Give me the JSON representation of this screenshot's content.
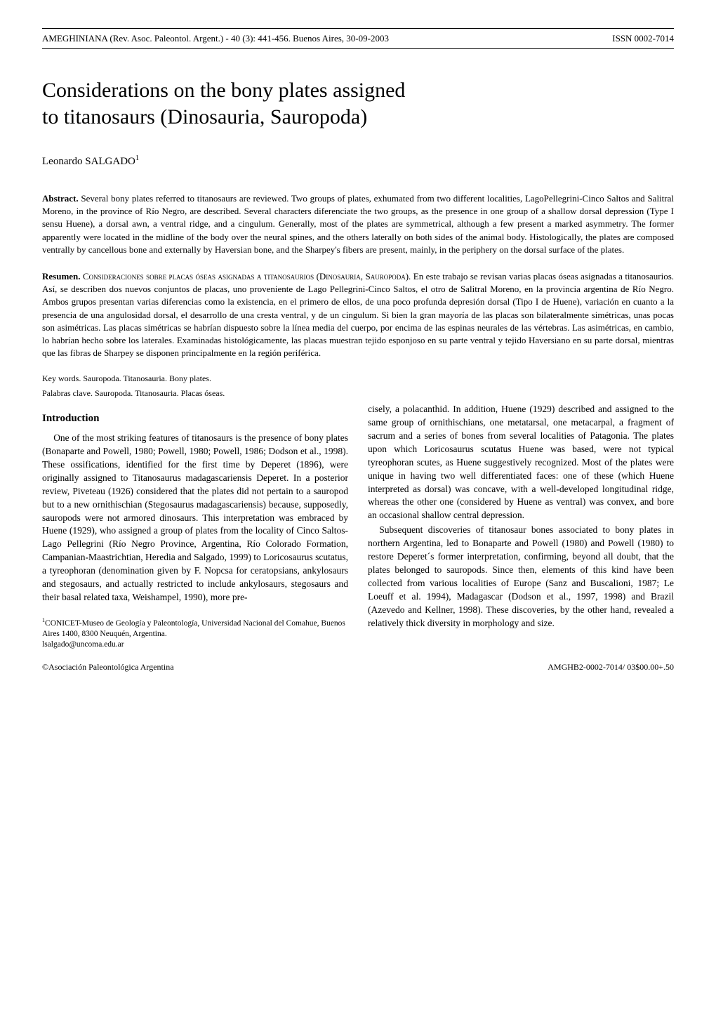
{
  "header": {
    "journal_line": "AMEGHINIANA (Rev. Asoc. Paleontol. Argent.) - 40 (3): 441-456. Buenos Aires, 30-09-2003",
    "issn": "ISSN 0002-7014"
  },
  "title_lines": [
    "Considerations on the bony plates assigned",
    "to titanosaurs (Dinosauria, Sauropoda)"
  ],
  "author": "Leonardo SALGADO",
  "author_sup": "1",
  "abstract_en": {
    "label": "Abstract.",
    "text": "Several bony plates referred to titanosaurs are reviewed. Two groups of plates, exhumated from two different localities, LagoPellegrini-Cinco Saltos and Salitral Moreno, in the province of Río Negro, are described. Several characters diferenciate the two groups, as the presence in one group of a shallow dorsal depression (Type I sensu Huene), a dorsal awn, a ventral ridge, and a cingulum. Generally, most of the plates are symmetrical, although a few present a marked asymmetry. The former apparently were located in the midline of the body over the neural spines, and the others laterally on both sides of the animal body. Histologically, the plates are composed ventrally by cancellous bone and externally by Haversian bone, and the Sharpey's fibers are present, mainly, in the periphery on the dorsal surface of the plates."
  },
  "abstract_es": {
    "label": "Resumen.",
    "title_smallcaps": "Consideraciones sobre placas óseas asignadas a titanosaurios (Dinosauria, Sauropoda).",
    "text": "En este trabajo se revisan varias placas óseas asignadas a titanosaurios. Así, se describen dos nuevos conjuntos de placas, uno proveniente de Lago Pellegrini-Cinco Saltos, el otro de Salitral Moreno, en la provincia argentina de Río Negro. Ambos grupos presentan varias diferencias como la existencia, en el primero de ellos, de una poco profunda depresión dorsal (Tipo I de Huene), variación en cuanto a la presencia de una angulosidad dorsal, el desarrollo de una cresta ventral, y de un cingulum. Si bien la gran mayoría de las placas son bilateralmente simétricas, unas pocas son asimétricas. Las placas simétricas se habrían dispuesto sobre la línea media del cuerpo, por encima de las espinas neurales de las vértebras. Las asimétricas, en cambio, lo habrían hecho sobre los laterales. Examinadas histológicamente, las placas muestran tejido esponjoso en su parte ventral y tejido Haversiano en su parte dorsal, mientras que las fibras de Sharpey se disponen principalmente en la región periférica."
  },
  "keywords_en": "Key words. Sauropoda. Titanosauria. Bony plates.",
  "keywords_es": "Palabras clave. Sauropoda. Titanosauria. Placas óseas.",
  "section_heading": "Introduction",
  "body": {
    "left": [
      "One of the most striking features of titanosaurs is the presence of bony plates (Bonaparte and Powell, 1980; Powell, 1980; Powell, 1986; Dodson et al., 1998). These ossifications, identified for the first time by Deperet (1896), were originally assigned to Titanosaurus madagascariensis Deperet. In a posterior review, Piveteau (1926) considered that the plates did not pertain to a sauropod but to a new ornithischian (Stegosaurus madagascariensis) because, supposedly, sauropods were not armored dinosaurs. This interpretation was embraced by Huene (1929), who assigned a group of plates from the locality of Cinco Saltos-Lago Pellegrini (Río Negro Province, Argentina, Río Colorado Formation, Campanian-Maastrichtian, Heredia and Salgado, 1999) to Loricosaurus scutatus, a tyreophoran (denomination given by F. Nopcsa for ceratopsians, ankylosaurs and stegosaurs, and actually restricted to include ankylosaurs, stegosaurs and their basal related taxa, Weishampel, 1990), more pre-"
    ],
    "right": [
      "cisely, a polacanthid. In addition, Huene (1929) described and assigned to the same group of ornithischians, one metatarsal, one metacarpal, a fragment of sacrum and a series of bones from several localities of Patagonia. The plates upon which Loricosaurus scutatus Huene was based, were not typical tyreophoran scutes, as Huene suggestively recognized. Most of the plates were unique in having two well differentiated faces: one of these (which Huene interpreted as dorsal) was concave, with a well-developed longitudinal ridge, whereas the other one (considered by Huene as ventral) was convex, and bore an occasional shallow central depression.",
      "Subsequent discoveries of titanosaur bones associated to bony plates in northern Argentina, led to Bonaparte and Powell (1980) and Powell (1980) to restore Deperet´s former interpretation, confirming, beyond all doubt, that the plates belonged to sauropods. Since then, elements of this kind have been collected from various localities of Europe (Sanz and Buscalioni, 1987; Le Loeuff et al. 1994), Madagascar (Dodson et al., 1997, 1998) and Brazil (Azevedo and Kellner, 1998). These discoveries, by the other hand, revealed a relatively thick diversity in morphology and size."
    ]
  },
  "footnote": {
    "sup": "1",
    "text": "CONICET-Museo de Geología y Paleontología, Universidad Nacional del Comahue, Buenos Aires 1400, 8300 Neuquén, Argentina.",
    "email": "lsalgado@uncoma.edu.ar"
  },
  "footer": {
    "left": "©Asociación Paleontológica Argentina",
    "right": "AMGHB2-0002-7014/ 03$00.00+.50"
  },
  "styles": {
    "page_bg": "#ffffff",
    "text_color": "#000000",
    "rule_color": "#000000",
    "title_fontsize_pt": 22,
    "body_fontsize_pt": 10,
    "abstract_fontsize_pt": 9.5,
    "header_fontsize_pt": 9.5,
    "footnote_fontsize_pt": 8.5,
    "font_family": "serif"
  }
}
